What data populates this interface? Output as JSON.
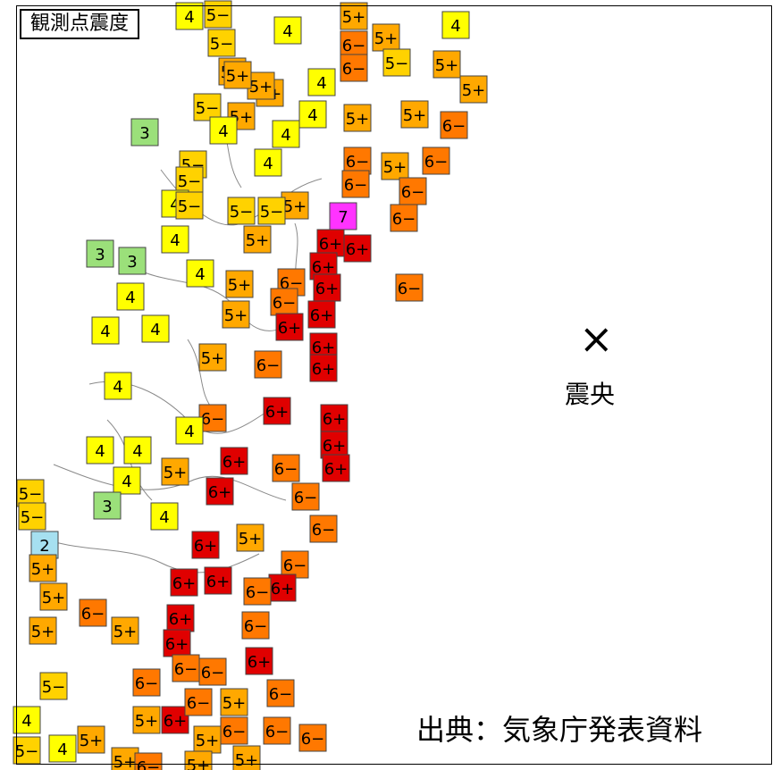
{
  "title": "観測点震度",
  "epicenter": {
    "mark": "×",
    "label": "震央"
  },
  "source": "出典：気象庁発表資料",
  "colors": {
    "land": "#ffffff",
    "border": "#888888",
    "i2": "#a6e0f0",
    "i3": "#9be07a",
    "i4": "#ffff00",
    "i5m": "#ffd200",
    "i5p": "#ffa800",
    "i6m": "#ff7800",
    "i6p": "#e00000",
    "i7": "#ff33ff"
  },
  "stations": [
    [
      "4"
    ],
    [
      "5−"
    ],
    [
      "5+"
    ],
    [
      "4"
    ],
    [
      "4"
    ],
    [
      "5−"
    ],
    [
      "5+"
    ],
    [
      "6−"
    ],
    [
      "5+"
    ],
    [
      "5−"
    ],
    [
      "5+"
    ],
    [
      "6−"
    ],
    [
      "5−"
    ],
    [
      "5+"
    ],
    [
      "4"
    ],
    [
      "4"
    ],
    [
      "5+"
    ],
    [
      "5+"
    ],
    [
      "6−"
    ],
    [
      "5+"
    ],
    [
      "3"
    ],
    [
      "4"
    ],
    [
      "5−"
    ],
    [
      "4"
    ],
    [
      "5+"
    ],
    [
      "4"
    ],
    [
      "5+"
    ],
    [
      "6−"
    ],
    [
      "5+"
    ],
    [
      "6−"
    ],
    [
      "5−"
    ],
    [
      "4"
    ],
    [
      "4"
    ],
    [
      "6−"
    ],
    [
      "5+"
    ],
    [
      "6−"
    ],
    [
      "5−"
    ],
    [
      "5−"
    ],
    [
      "5+"
    ],
    [
      "5−"
    ],
    [
      "5+"
    ],
    [
      "6−"
    ],
    [
      "6−"
    ],
    [
      "4"
    ],
    [
      "7"
    ],
    [
      "6+"
    ],
    [
      "6+"
    ],
    [
      "6+"
    ],
    [
      "6−"
    ],
    [
      "3"
    ],
    [
      "3"
    ],
    [
      "4"
    ],
    [
      "5+"
    ],
    [
      "6+"
    ],
    [
      "6+"
    ],
    [
      "6−"
    ],
    [
      "4"
    ],
    [
      "5+"
    ],
    [
      "6−"
    ],
    [
      "6+"
    ],
    [
      "6+"
    ],
    [
      "4"
    ],
    [
      "5+"
    ],
    [
      "6+"
    ],
    [
      "6+"
    ],
    [
      "4"
    ],
    [
      "6−"
    ],
    [
      "6+"
    ],
    [
      "4"
    ],
    [
      "4"
    ],
    [
      "5+"
    ],
    [
      "6−"
    ],
    [
      "6+"
    ],
    [
      "4"
    ],
    [
      "4"
    ],
    [
      "6−"
    ],
    [
      "6+"
    ],
    [
      "6−"
    ],
    [
      "6+"
    ],
    [
      "6+"
    ],
    [
      "4"
    ],
    [
      "5−"
    ],
    [
      "6+"
    ],
    [
      "6−"
    ],
    [
      "6+"
    ],
    [
      "5−"
    ],
    [
      "4"
    ],
    [
      "3"
    ],
    [
      "6+"
    ],
    [
      "6−"
    ],
    [
      "6−"
    ],
    [
      "2"
    ],
    [
      "5+"
    ],
    [
      "6+"
    ],
    [
      "5+"
    ],
    [
      "6−"
    ],
    [
      "5+"
    ],
    [
      "6+"
    ],
    [
      "6−"
    ],
    [
      "6+"
    ],
    [
      "5+"
    ],
    [
      "5+"
    ],
    [
      "6−"
    ],
    [
      "6+"
    ],
    [
      "6−"
    ],
    [
      "6+"
    ],
    [
      "5+"
    ],
    [
      "6−"
    ],
    [
      "5+"
    ],
    [
      "6−"
    ],
    [
      "6−"
    ],
    [
      "4"
    ],
    [
      "5−"
    ],
    [
      "5+"
    ],
    [
      "6−"
    ],
    [
      "5+"
    ],
    [
      "6−"
    ],
    [
      "4"
    ],
    [
      "5−"
    ],
    [
      "5+"
    ],
    [
      "5+"
    ],
    [
      "6−"
    ],
    [
      "5+"
    ]
  ]
}
